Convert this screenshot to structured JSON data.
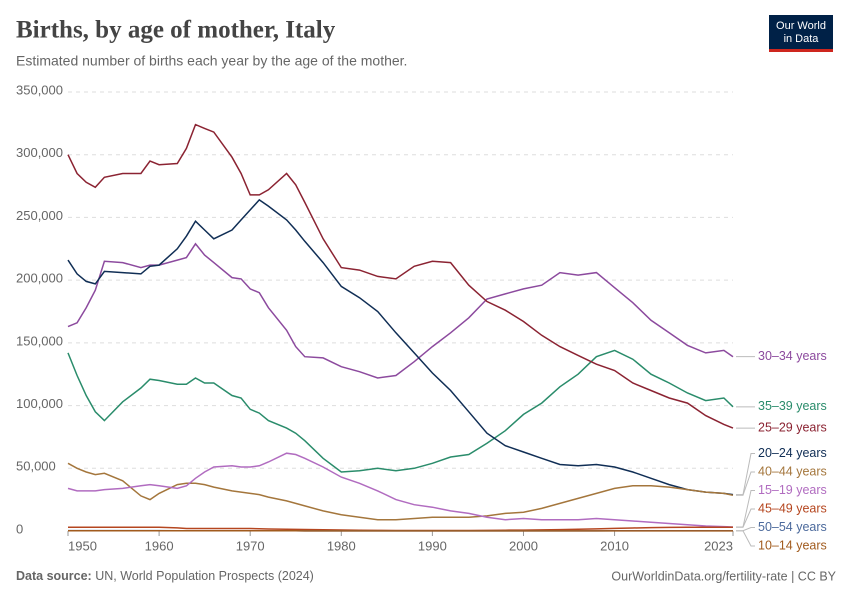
{
  "chart_data": {
    "type": "line",
    "title": "Births, by age of mother, Italy",
    "subtitle": "Estimated number of births each year by the age of the mother.",
    "source_label": "Data source:",
    "source": "UN, World Population Prospects (2024)",
    "url": "OurWorldinData.org/fertility-rate | CC BY",
    "logo": [
      "Our World",
      "in Data"
    ],
    "xlim": [
      1950,
      2023
    ],
    "xticks": [
      1950,
      1960,
      1970,
      1980,
      1990,
      2000,
      2010,
      2023
    ],
    "ylim": [
      0,
      350000
    ],
    "yticks": [
      0,
      {
        "value": 50000,
        "label": "50,000"
      },
      {
        "value": 100000,
        "label": "100,000"
      },
      {
        "value": 150000,
        "label": "150,000"
      },
      {
        "value": 200000,
        "label": "200,000"
      },
      {
        "value": 250000,
        "label": "250,000"
      },
      {
        "value": 300000,
        "label": "300,000"
      },
      {
        "value": 350000,
        "label": "350,000"
      }
    ],
    "grid": true,
    "x": [
      1950,
      1951,
      1952,
      1953,
      1954,
      1956,
      1958,
      1959,
      1960,
      1962,
      1963,
      1964,
      1965,
      1966,
      1968,
      1969,
      1970,
      1971,
      1972,
      1974,
      1975,
      1976,
      1978,
      1980,
      1982,
      1984,
      1986,
      1988,
      1990,
      1992,
      1994,
      1996,
      1998,
      2000,
      2002,
      2004,
      2006,
      2008,
      2010,
      2012,
      2014,
      2016,
      2018,
      2020,
      2022,
      2023
    ],
    "series": [
      {
        "name": "30–34 years",
        "color": "#8c4a9e",
        "values": [
          163000,
          166000,
          178000,
          192000,
          215000,
          214000,
          210000,
          212000,
          212000,
          216000,
          218000,
          229000,
          220000,
          214000,
          202000,
          201000,
          193000,
          190000,
          178000,
          160000,
          147000,
          139000,
          138000,
          131000,
          127000,
          122000,
          124000,
          135000,
          147000,
          158000,
          170000,
          185000,
          189000,
          193000,
          196000,
          206000,
          204000,
          206000,
          194000,
          182000,
          168000,
          158000,
          148000,
          142000,
          144000,
          139000
        ]
      },
      {
        "name": "35–39 years",
        "color": "#2a8c6b",
        "values": [
          142000,
          124000,
          108000,
          95000,
          88000,
          103000,
          114000,
          121000,
          120000,
          117000,
          117000,
          122000,
          118000,
          118000,
          108000,
          106000,
          97000,
          94000,
          88000,
          82000,
          78000,
          72000,
          58000,
          47000,
          48000,
          50000,
          48000,
          50000,
          54000,
          59000,
          61000,
          70000,
          80000,
          93000,
          102000,
          115000,
          125000,
          139000,
          144000,
          137000,
          125000,
          118000,
          110000,
          104000,
          106000,
          99000
        ]
      },
      {
        "name": "25–29 years",
        "color": "#8b2332",
        "values": [
          300000,
          285000,
          278000,
          274000,
          282000,
          285000,
          285000,
          295000,
          292000,
          293000,
          305000,
          324000,
          321000,
          318000,
          298000,
          285000,
          268000,
          268000,
          272000,
          285000,
          276000,
          262000,
          233000,
          210000,
          208000,
          203000,
          201000,
          211000,
          215000,
          214000,
          196000,
          183000,
          176000,
          167000,
          156000,
          147000,
          140000,
          133000,
          128000,
          118000,
          112000,
          106000,
          102000,
          92000,
          85000,
          82000
        ]
      },
      {
        "name": "20–24 years",
        "color": "#102e55",
        "values": [
          216000,
          205000,
          199000,
          197000,
          207000,
          206000,
          205000,
          211000,
          212000,
          225000,
          235000,
          247000,
          240000,
          233000,
          240000,
          248000,
          256000,
          264000,
          259000,
          248000,
          240000,
          231000,
          214000,
          195000,
          186000,
          175000,
          158000,
          142000,
          126000,
          112000,
          95000,
          78000,
          68000,
          63000,
          58000,
          53000,
          52000,
          53000,
          51000,
          47000,
          42000,
          37000,
          33000,
          31000,
          30000,
          29000
        ]
      },
      {
        "name": "40–44 years",
        "color": "#a4763c",
        "values": [
          54000,
          50000,
          47000,
          45000,
          46000,
          40000,
          28000,
          25000,
          30000,
          37000,
          38000,
          38000,
          37000,
          35000,
          32000,
          31000,
          30000,
          29000,
          27000,
          24000,
          22000,
          20000,
          16000,
          13000,
          11000,
          9000,
          9000,
          10000,
          11000,
          11000,
          11000,
          12000,
          14000,
          15000,
          18000,
          22000,
          26000,
          30000,
          34000,
          36000,
          36000,
          35000,
          33000,
          31000,
          30000,
          28500
        ]
      },
      {
        "name": "15–19 years",
        "color": "#b16cc0",
        "values": [
          34000,
          32000,
          32000,
          32000,
          33000,
          34000,
          36000,
          37000,
          36000,
          34000,
          36000,
          42000,
          47000,
          51000,
          52000,
          51000,
          51000,
          52000,
          55000,
          62000,
          61000,
          58000,
          51000,
          43000,
          38000,
          32000,
          25000,
          21000,
          19000,
          16000,
          14000,
          11000,
          9000,
          10000,
          9000,
          9000,
          9000,
          10000,
          9000,
          8000,
          7000,
          6000,
          5000,
          4000,
          3500,
          3200
        ]
      },
      {
        "name": "45–49 years",
        "color": "#b5461f",
        "values": [
          3000,
          3000,
          3000,
          3000,
          3000,
          3000,
          3000,
          3000,
          3000,
          2500,
          2000,
          2000,
          2000,
          2000,
          2000,
          2000,
          2000,
          1800,
          1600,
          1400,
          1300,
          1200,
          1000,
          800,
          600,
          500,
          400,
          400,
          400,
          400,
          400,
          500,
          600,
          700,
          900,
          1100,
          1400,
          1700,
          2100,
          2400,
          2700,
          2900,
          3000,
          3000,
          3000,
          3000
        ]
      },
      {
        "name": "50–54 years",
        "color": "#4c6a9c",
        "values": [
          300,
          300,
          300,
          300,
          300,
          300,
          300,
          300,
          300,
          200,
          200,
          200,
          200,
          200,
          200,
          200,
          200,
          200,
          200,
          200,
          200,
          100,
          100,
          100,
          100,
          100,
          100,
          100,
          100,
          100,
          100,
          100,
          100,
          100,
          100,
          100,
          100,
          100,
          200,
          200,
          200,
          200,
          200,
          200,
          200,
          200
        ]
      },
      {
        "name": "10–14 years",
        "color": "#a15b1e",
        "values": [
          200,
          200,
          200,
          200,
          200,
          200,
          200,
          200,
          200,
          200,
          200,
          200,
          200,
          200,
          200,
          200,
          200,
          200,
          200,
          200,
          200,
          100,
          100,
          100,
          100,
          100,
          100,
          100,
          100,
          100,
          100,
          100,
          100,
          100,
          100,
          100,
          100,
          100,
          100,
          100,
          100,
          100,
          100,
          100,
          100,
          100
        ]
      }
    ]
  }
}
